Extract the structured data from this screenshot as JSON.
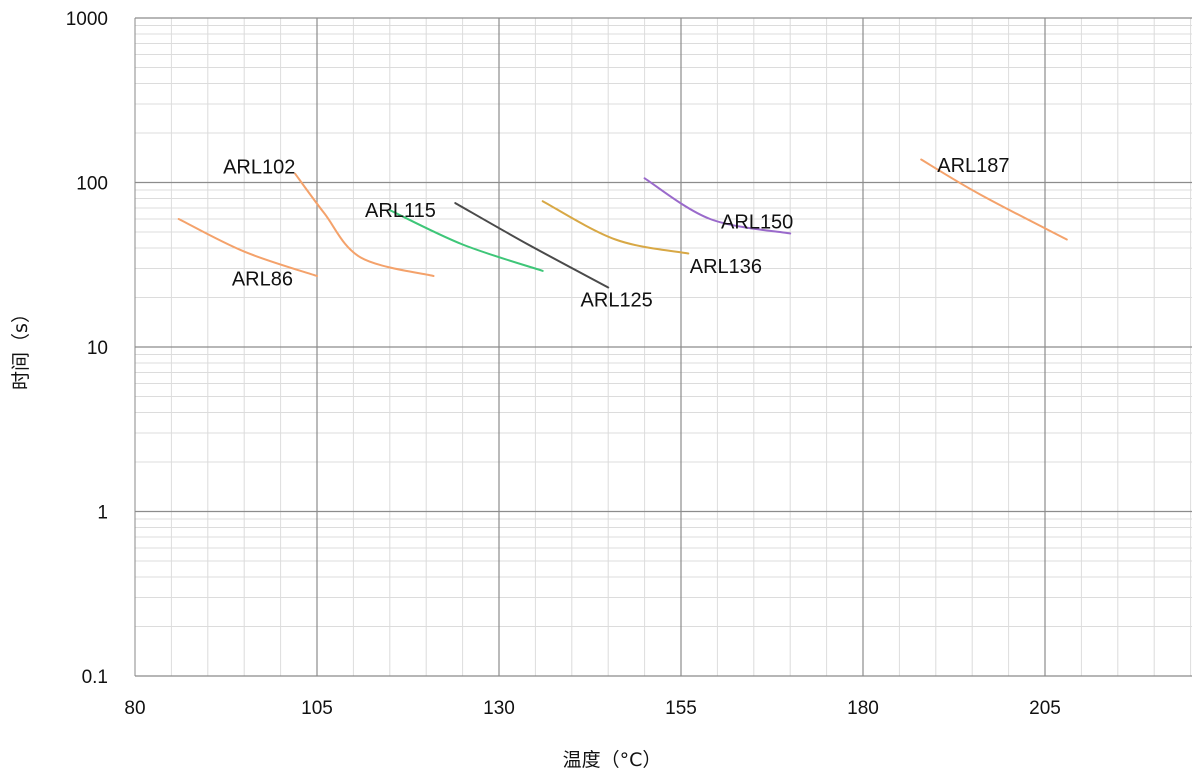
{
  "chart_data": {
    "type": "line",
    "xlabel": "温度（°C）",
    "ylabel": "时间（s）",
    "xlim": [
      80,
      230
    ],
    "ylim": [
      0.1,
      1000
    ],
    "y_scale": "log",
    "grid": true,
    "x_ticks": [
      {
        "value": 80,
        "label": "80"
      },
      {
        "value": 105,
        "label": "105"
      },
      {
        "value": 130,
        "label": "130"
      },
      {
        "value": 155,
        "label": "155"
      },
      {
        "value": 180,
        "label": "180"
      },
      {
        "value": 205,
        "label": "205"
      }
    ],
    "y_ticks": [
      {
        "value": 0.1,
        "label": "0.1"
      },
      {
        "value": 1,
        "label": "1"
      },
      {
        "value": 10,
        "label": "10"
      },
      {
        "value": 100,
        "label": "100"
      },
      {
        "value": 1000,
        "label": "1000"
      }
    ],
    "series": [
      {
        "name": "ARL86",
        "color": "#f4a26b",
        "x": [
          86,
          95,
          105
        ],
        "y": [
          60,
          38,
          27
        ],
        "label_at": [
          93.3,
          26
        ]
      },
      {
        "name": "ARL102",
        "color": "#f4a26b",
        "x": [
          102,
          106,
          111,
          121
        ],
        "y": [
          113,
          65,
          35,
          27
        ],
        "label_at": [
          92.1,
          125
        ]
      },
      {
        "name": "ARL115",
        "color": "#3ec678",
        "x": [
          115,
          125,
          136
        ],
        "y": [
          68,
          42,
          29
        ],
        "label_at": [
          111.6,
          68
        ]
      },
      {
        "name": "ARL125",
        "color": "#4a4a4a",
        "x": [
          124,
          134,
          145
        ],
        "y": [
          75,
          42,
          23
        ],
        "label_at": [
          141.2,
          19.5
        ]
      },
      {
        "name": "ARL136",
        "color": "#d8a845",
        "x": [
          136,
          146,
          156
        ],
        "y": [
          77,
          45,
          37
        ],
        "label_at": [
          156.2,
          31
        ]
      },
      {
        "name": "ARL150",
        "color": "#9a6acb",
        "x": [
          150,
          159,
          170
        ],
        "y": [
          106,
          60,
          49
        ],
        "label_at": [
          160.5,
          58
        ]
      },
      {
        "name": "ARL187",
        "color": "#f4a26b",
        "x": [
          188,
          196,
          208
        ],
        "y": [
          138,
          85,
          45
        ],
        "label_at": [
          190.2,
          128
        ]
      }
    ]
  }
}
